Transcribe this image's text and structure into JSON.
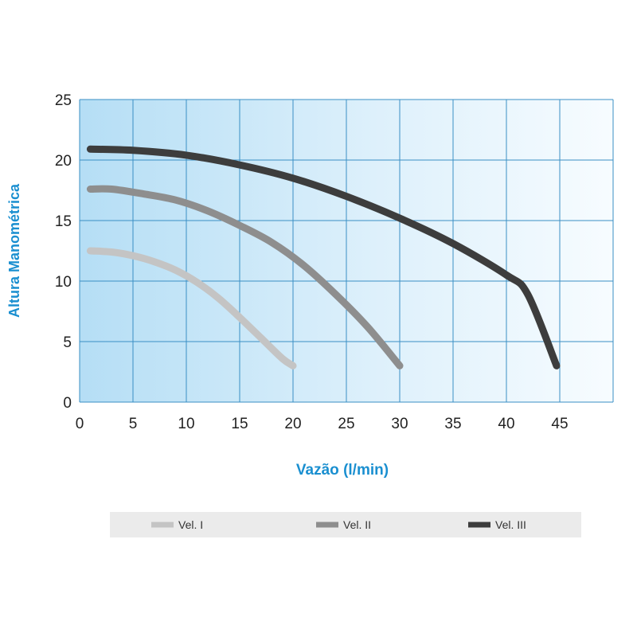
{
  "chart_data": {
    "type": "line",
    "title": "",
    "xlabel": "Vazão (l/min)",
    "ylabel": "Altura Manométrica",
    "xlim": [
      0,
      50
    ],
    "ylim": [
      0,
      25
    ],
    "xticks": [
      0,
      5,
      10,
      15,
      20,
      25,
      30,
      35,
      40,
      45
    ],
    "yticks": [
      0,
      5,
      10,
      15,
      20,
      25
    ],
    "grid": true,
    "legend_position": "bottom",
    "series": [
      {
        "name": "Vel. I",
        "color": "#c4c4c4",
        "x": [
          1,
          3,
          5,
          7,
          9,
          11,
          13,
          15,
          17,
          19,
          20
        ],
        "y": [
          12.5,
          12.4,
          12.1,
          11.6,
          10.9,
          9.9,
          8.6,
          7.0,
          5.3,
          3.6,
          3.0
        ]
      },
      {
        "name": "Vel. II",
        "color": "#8e8e8e",
        "x": [
          1,
          3,
          6,
          9,
          12,
          15,
          18,
          21,
          24,
          27,
          30
        ],
        "y": [
          17.6,
          17.6,
          17.2,
          16.7,
          15.8,
          14.6,
          13.2,
          11.3,
          8.9,
          6.2,
          3.0
        ]
      },
      {
        "name": "Vel. III",
        "color": "#3d3d3d",
        "x": [
          1,
          5,
          10,
          15,
          20,
          25,
          30,
          35,
          40,
          42,
          44.7
        ],
        "y": [
          20.9,
          20.8,
          20.4,
          19.6,
          18.5,
          17.0,
          15.2,
          13.1,
          10.5,
          8.9,
          3.0
        ]
      }
    ]
  }
}
